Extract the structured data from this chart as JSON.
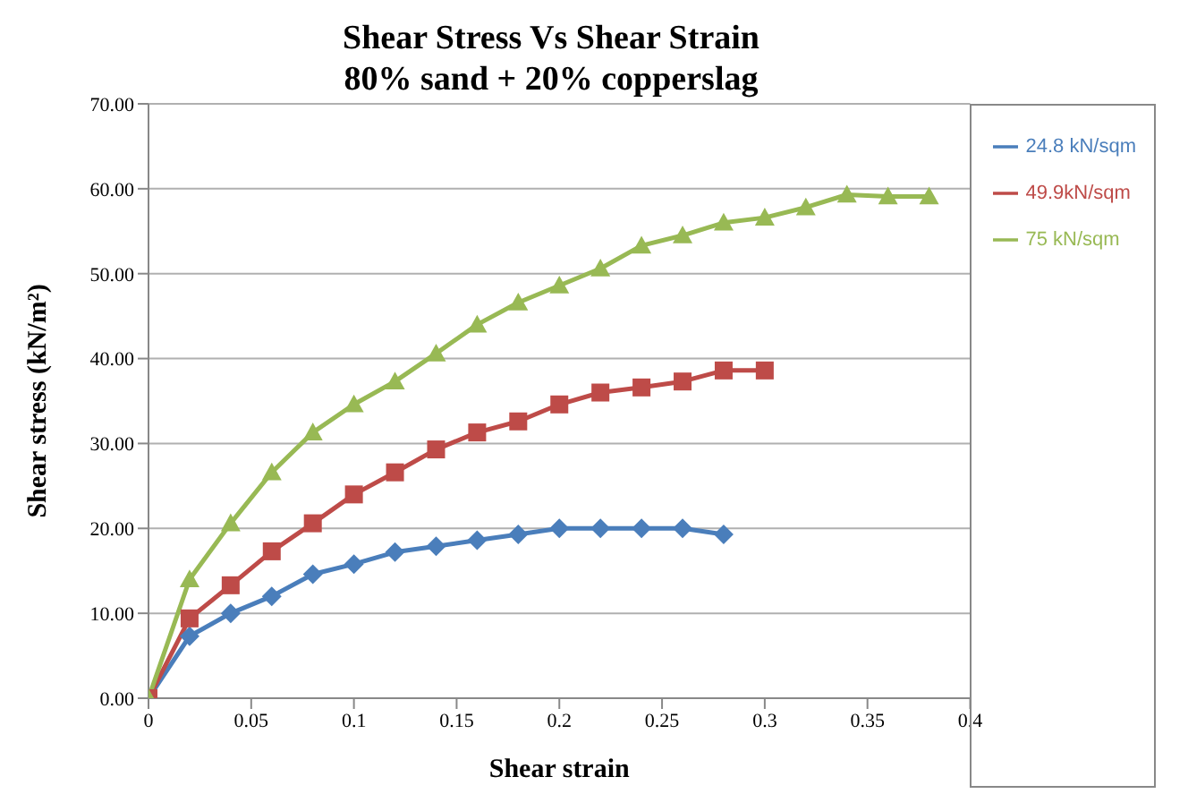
{
  "chart_data": {
    "type": "line",
    "title": "Shear Stress Vs Shear Strain",
    "subtitle": "80% sand + 20% copperslag",
    "xlabel": "Shear strain",
    "ylabel": "Shear stress (kN/m²)",
    "xlim": [
      0,
      0.4
    ],
    "xticks": [
      0,
      0.05,
      0.1,
      0.15,
      0.2,
      0.25,
      0.3,
      0.35,
      0.4
    ],
    "ylim": [
      0,
      70
    ],
    "yticks": [
      {
        "value": 0,
        "label": "0.00"
      },
      {
        "value": 10,
        "label": "10.00"
      },
      {
        "value": 20,
        "label": "20.00"
      },
      {
        "value": 30,
        "label": "30.00"
      },
      {
        "value": 40,
        "label": "40.00"
      },
      {
        "value": 50,
        "label": "50.00"
      },
      {
        "value": 60,
        "label": "60.00"
      },
      {
        "value": 70,
        "label": "70.00"
      }
    ],
    "grid": "y",
    "legend": "right",
    "series": [
      {
        "name": "24.8 kN/sqm",
        "color": "#4a7ebb",
        "marker": "diamond",
        "x": [
          0,
          0.02,
          0.04,
          0.06,
          0.08,
          0.1,
          0.12,
          0.14,
          0.16,
          0.18,
          0.2,
          0.22,
          0.24,
          0.26,
          0.28
        ],
        "values": [
          0,
          7.3,
          10,
          12,
          14.6,
          15.8,
          17.2,
          17.9,
          18.6,
          19.3,
          20,
          20,
          20,
          20,
          19.3
        ]
      },
      {
        "name": "49.9kN/sqm",
        "color": "#be4b48",
        "marker": "square",
        "x": [
          0,
          0.02,
          0.04,
          0.06,
          0.08,
          0.1,
          0.12,
          0.14,
          0.16,
          0.18,
          0.2,
          0.22,
          0.24,
          0.26,
          0.28,
          0.3
        ],
        "values": [
          0,
          9.4,
          13.3,
          17.3,
          20.6,
          24,
          26.6,
          29.3,
          31.3,
          32.6,
          34.6,
          36,
          36.6,
          37.3,
          38.6,
          38.6
        ]
      },
      {
        "name": "75 kN/sqm",
        "color": "#98b954",
        "marker": "triangle",
        "x": [
          0,
          0.02,
          0.04,
          0.06,
          0.08,
          0.1,
          0.12,
          0.14,
          0.16,
          0.18,
          0.2,
          0.22,
          0.24,
          0.26,
          0.28,
          0.3,
          0.32,
          0.34,
          0.36,
          0.38
        ],
        "values": [
          0,
          14,
          20.6,
          26.6,
          31.3,
          34.6,
          37.3,
          40.6,
          44,
          46.6,
          48.6,
          50.6,
          53.3,
          54.5,
          56,
          56.6,
          57.8,
          59.3,
          59.1,
          59.1
        ]
      }
    ]
  }
}
